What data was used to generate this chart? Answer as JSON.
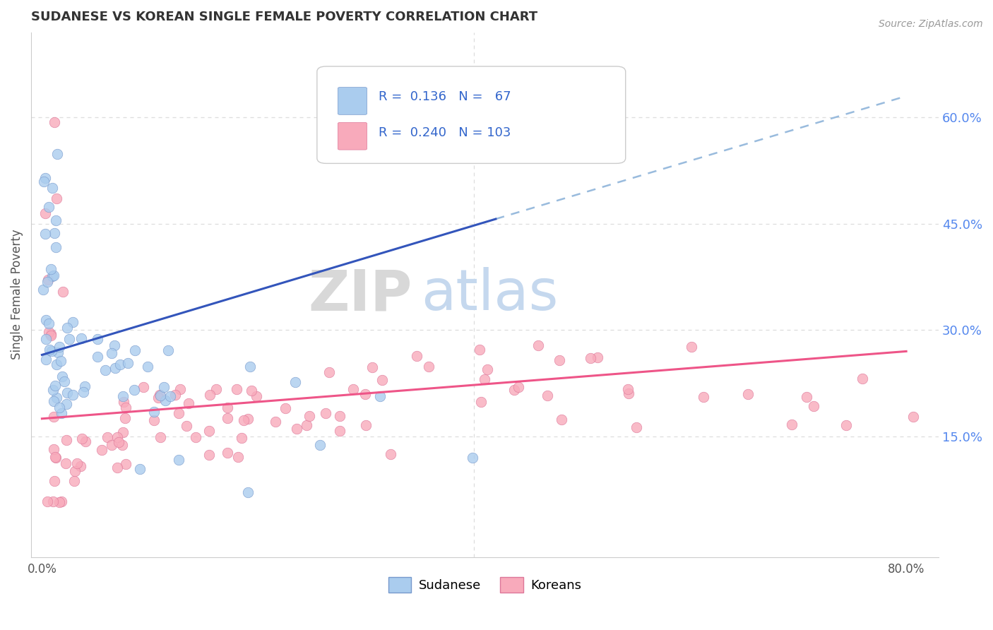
{
  "title": "SUDANESE VS KOREAN SINGLE FEMALE POVERTY CORRELATION CHART",
  "source": "Source: ZipAtlas.com",
  "ylabel": "Single Female Poverty",
  "xlim": [
    0.0,
    0.82
  ],
  "ylim": [
    -0.02,
    0.72
  ],
  "xtick_positions": [
    0.0,
    0.1,
    0.2,
    0.3,
    0.4,
    0.5,
    0.6,
    0.7,
    0.8
  ],
  "xticklabels": [
    "0.0%",
    "",
    "",
    "",
    "",
    "",
    "",
    "",
    "80.0%"
  ],
  "yticks_right": [
    0.15,
    0.3,
    0.45,
    0.6
  ],
  "ytick_right_labels": [
    "15.0%",
    "30.0%",
    "45.0%",
    "60.0%"
  ],
  "sudanese_color": "#aaccee",
  "sudanese_edge": "#7799cc",
  "korean_color": "#f8aabb",
  "korean_edge": "#dd7799",
  "line_blue": "#3355bb",
  "line_pink": "#ee5588",
  "line_dash_color": "#99bbdd",
  "R_sudanese": 0.136,
  "N_sudanese": 67,
  "R_korean": 0.24,
  "N_korean": 103,
  "legend_sudanese": "Sudanese",
  "legend_korean": "Koreans",
  "watermark_ZIP": "ZIP",
  "watermark_atlas": "atlas",
  "background_color": "#ffffff",
  "grid_color": "#dddddd",
  "right_tick_color": "#5588ee",
  "title_color": "#333333",
  "source_color": "#999999",
  "ylabel_color": "#555555"
}
